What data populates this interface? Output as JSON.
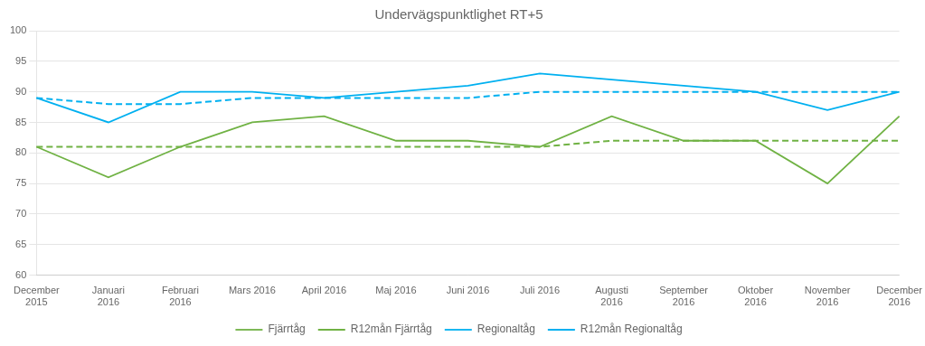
{
  "chart_data": {
    "type": "line",
    "title": "Undervägspunktlighet RT+5",
    "categories": [
      "December\n2015",
      "Januari\n2016",
      "Februari\n2016",
      "Mars 2016",
      "April 2016",
      "Maj 2016",
      "Juni 2016",
      "Juli 2016",
      "Augusti\n2016",
      "September\n2016",
      "Oktober\n2016",
      "November\n2016",
      "December\n2016"
    ],
    "series": [
      {
        "name": "Fjärrtåg",
        "color": "#70b244",
        "line_style": "solid",
        "values": [
          81,
          76,
          81,
          85,
          86,
          82,
          82,
          81,
          86,
          82,
          82,
          75,
          86
        ]
      },
      {
        "name": "R12mån Fjärrtåg",
        "color": "#70b244",
        "line_style": "dashed",
        "values": [
          81,
          81,
          81,
          81,
          81,
          81,
          81,
          81,
          82,
          82,
          82,
          82,
          82
        ]
      },
      {
        "name": "Regionaltåg",
        "color": "#00b0f0",
        "line_style": "solid",
        "values": [
          89,
          85,
          90,
          90,
          89,
          90,
          91,
          93,
          92,
          91,
          90,
          87,
          90
        ]
      },
      {
        "name": "R12mån Regionaltåg",
        "color": "#00b0f0",
        "line_style": "dashed",
        "values": [
          89,
          88,
          88,
          89,
          89,
          89,
          89,
          90,
          90,
          90,
          90,
          90,
          90
        ]
      }
    ],
    "ylim": [
      60,
      100
    ],
    "yticks": [
      60,
      65,
      70,
      75,
      80,
      85,
      90,
      95,
      100
    ],
    "grid": "y",
    "legend": "bottom"
  }
}
